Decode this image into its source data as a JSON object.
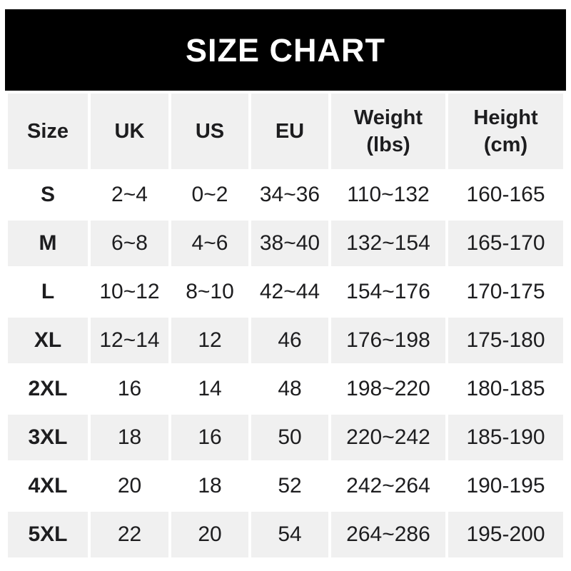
{
  "title": "SIZE CHART",
  "colors": {
    "banner_bg": "#000000",
    "banner_text": "#ffffff",
    "row_bg": "#ffffff",
    "row_alt_bg": "#f0f0f0",
    "text": "#1d1d1f"
  },
  "table": {
    "columns": [
      {
        "label": "Size"
      },
      {
        "label": "UK"
      },
      {
        "label": "US"
      },
      {
        "label": "EU"
      },
      {
        "label": "Weight",
        "sub": "(lbs)"
      },
      {
        "label": "Height",
        "sub": "(cm)"
      }
    ],
    "rows": [
      {
        "cells": [
          "S",
          "2~4",
          "0~2",
          "34~36",
          "110~132",
          "160-165"
        ]
      },
      {
        "cells": [
          "M",
          "6~8",
          "4~6",
          "38~40",
          "132~154",
          "165-170"
        ]
      },
      {
        "cells": [
          "L",
          "10~12",
          "8~10",
          "42~44",
          "154~176",
          "170-175"
        ]
      },
      {
        "cells": [
          "XL",
          "12~14",
          "12",
          "46",
          "176~198",
          "175-180"
        ]
      },
      {
        "cells": [
          "2XL",
          "16",
          "14",
          "48",
          "198~220",
          "180-185"
        ]
      },
      {
        "cells": [
          "3XL",
          "18",
          "16",
          "50",
          "220~242",
          "185-190"
        ]
      },
      {
        "cells": [
          "4XL",
          "20",
          "18",
          "52",
          "242~264",
          "190-195"
        ]
      },
      {
        "cells": [
          "5XL",
          "22",
          "20",
          "54",
          "264~286",
          "195-200"
        ]
      }
    ]
  },
  "chart_data": {
    "type": "table",
    "title": "SIZE CHART",
    "columns": [
      "Size",
      "UK",
      "US",
      "EU",
      "Weight (lbs)",
      "Height (cm)"
    ],
    "rows": [
      [
        "S",
        "2~4",
        "0~2",
        "34~36",
        "110~132",
        "160-165"
      ],
      [
        "M",
        "6~8",
        "4~6",
        "38~40",
        "132~154",
        "165-170"
      ],
      [
        "L",
        "10~12",
        "8~10",
        "42~44",
        "154~176",
        "170-175"
      ],
      [
        "XL",
        "12~14",
        "12",
        "46",
        "176~198",
        "175-180"
      ],
      [
        "2XL",
        "16",
        "14",
        "48",
        "198~220",
        "180-185"
      ],
      [
        "3XL",
        "18",
        "16",
        "50",
        "220~242",
        "185-190"
      ],
      [
        "4XL",
        "20",
        "18",
        "52",
        "242~264",
        "190-195"
      ],
      [
        "5XL",
        "22",
        "20",
        "54",
        "264~286",
        "195-200"
      ]
    ]
  }
}
